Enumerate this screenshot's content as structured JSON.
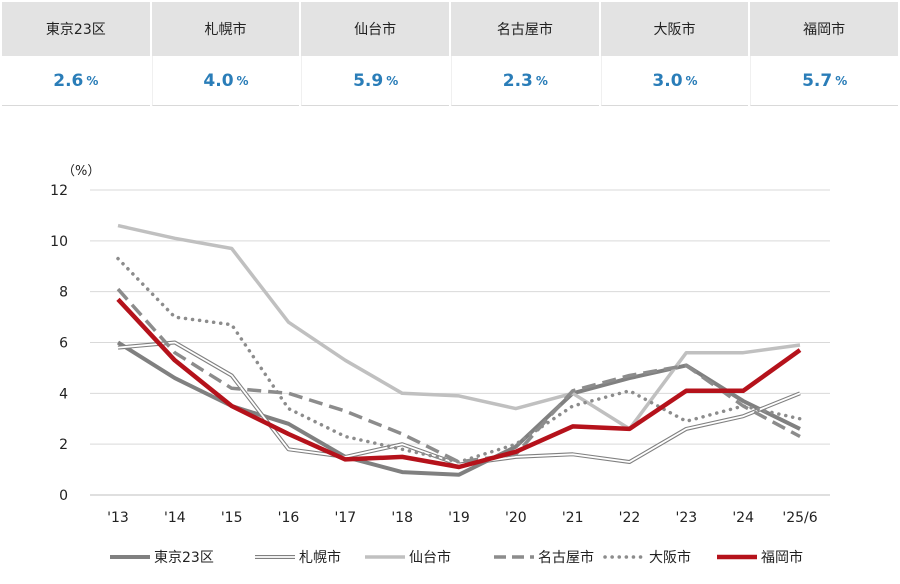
{
  "summary": {
    "cities": [
      {
        "name": "東京23区",
        "value": "2.6",
        "unit": "%"
      },
      {
        "name": "札幌市",
        "value": "4.0",
        "unit": "%"
      },
      {
        "name": "仙台市",
        "value": "5.9",
        "unit": "%"
      },
      {
        "name": "名古屋市",
        "value": "2.3",
        "unit": "%"
      },
      {
        "name": "大阪市",
        "value": "3.0",
        "unit": "%"
      },
      {
        "name": "福岡市",
        "value": "5.7",
        "unit": "%"
      }
    ]
  },
  "chart_data": {
    "type": "line",
    "ylabel": "（%）",
    "xlabel": "",
    "ylim": [
      0,
      12
    ],
    "yticks": [
      0,
      2,
      4,
      6,
      8,
      10,
      12
    ],
    "grid": true,
    "legend": "bottom",
    "categories": [
      "'13",
      "'14",
      "'15",
      "'16",
      "'17",
      "'18",
      "'19",
      "'20",
      "'21",
      "'22",
      "'23",
      "'24",
      "'25/6"
    ],
    "series": [
      {
        "name": "東京23区",
        "color": "#808080",
        "style": "solid",
        "width": 4,
        "values": [
          6.0,
          4.6,
          3.5,
          2.8,
          1.5,
          0.9,
          0.8,
          1.9,
          4.0,
          4.6,
          5.1,
          3.7,
          2.6
        ]
      },
      {
        "name": "札幌市",
        "color": "#808080",
        "style": "double",
        "width": 1,
        "values": [
          5.8,
          6.0,
          4.7,
          1.8,
          1.5,
          2.0,
          1.2,
          1.5,
          1.6,
          1.3,
          2.6,
          3.1,
          4.0
        ]
      },
      {
        "name": "仙台市",
        "color": "#c0c0c0",
        "style": "solid",
        "width": 3.5,
        "values": [
          10.6,
          10.1,
          9.7,
          6.8,
          5.3,
          4.0,
          3.9,
          3.4,
          4.0,
          2.6,
          5.6,
          5.6,
          5.9
        ]
      },
      {
        "name": "名古屋市",
        "color": "#8c8c8c",
        "style": "dashed",
        "width": 3.5,
        "values": [
          8.1,
          5.6,
          4.2,
          4.0,
          3.3,
          2.4,
          1.3,
          1.6,
          4.1,
          4.7,
          5.1,
          3.5,
          2.3
        ]
      },
      {
        "name": "大阪市",
        "color": "#8c8c8c",
        "style": "dotted",
        "width": 3.5,
        "values": [
          9.3,
          7.0,
          6.7,
          3.4,
          2.3,
          1.8,
          1.3,
          2.0,
          3.5,
          4.1,
          2.9,
          3.5,
          3.0
        ]
      },
      {
        "name": "福岡市",
        "color": "#b5121b",
        "style": "solid",
        "width": 4.5,
        "values": [
          7.7,
          5.3,
          3.5,
          2.4,
          1.4,
          1.5,
          1.1,
          1.7,
          2.7,
          2.6,
          4.1,
          4.1,
          5.7
        ]
      }
    ]
  }
}
